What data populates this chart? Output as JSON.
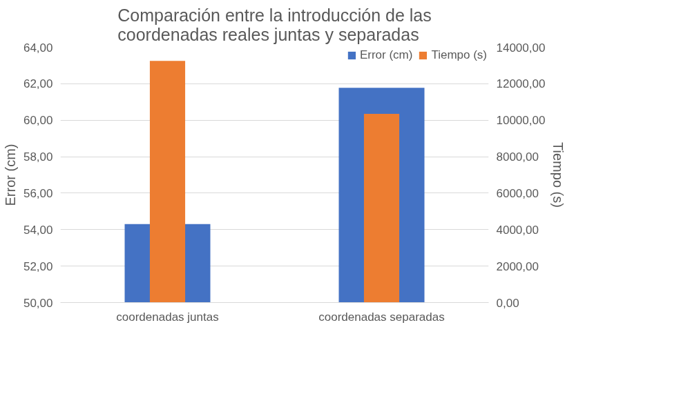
{
  "chart_data": {
    "type": "bar",
    "title": "Comparación entre la introducción de las coordenadas reales juntas y separadas",
    "categories": [
      "coordenadas juntas",
      "coordenadas separadas"
    ],
    "series": [
      {
        "name": "Error (cm)",
        "color": "#4472c4",
        "values": [
          54.3,
          61.78
        ]
      },
      {
        "name": "Tiempo (s)",
        "color": "#ed7d31",
        "values": [
          13250,
          10350
        ],
        "axis": "y2"
      }
    ],
    "ylabel": "Error (cm)",
    "y2label": "Tiempo (s)",
    "ylim": [
      50,
      64
    ],
    "yticks": [
      {
        "value": 50,
        "label": "50,00"
      },
      {
        "value": 52,
        "label": "52,00"
      },
      {
        "value": 54,
        "label": "54,00"
      },
      {
        "value": 56,
        "label": "56,00"
      },
      {
        "value": 58,
        "label": "58,00"
      },
      {
        "value": 60,
        "label": "60,00"
      },
      {
        "value": 62,
        "label": "62,00"
      },
      {
        "value": 64,
        "label": "64,00"
      }
    ],
    "y2lim": [
      0,
      14000
    ],
    "y2ticks": [
      {
        "value": 0,
        "label": "0,00"
      },
      {
        "value": 2000,
        "label": "2000,00"
      },
      {
        "value": 4000,
        "label": "4000,00"
      },
      {
        "value": 6000,
        "label": "6000,00"
      },
      {
        "value": 8000,
        "label": "8000,00"
      },
      {
        "value": 10000,
        "label": "10000,00"
      },
      {
        "value": 12000,
        "label": "12000,00"
      },
      {
        "value": 14000,
        "label": "14000,00"
      }
    ],
    "grid": "y",
    "legend": "top right"
  }
}
